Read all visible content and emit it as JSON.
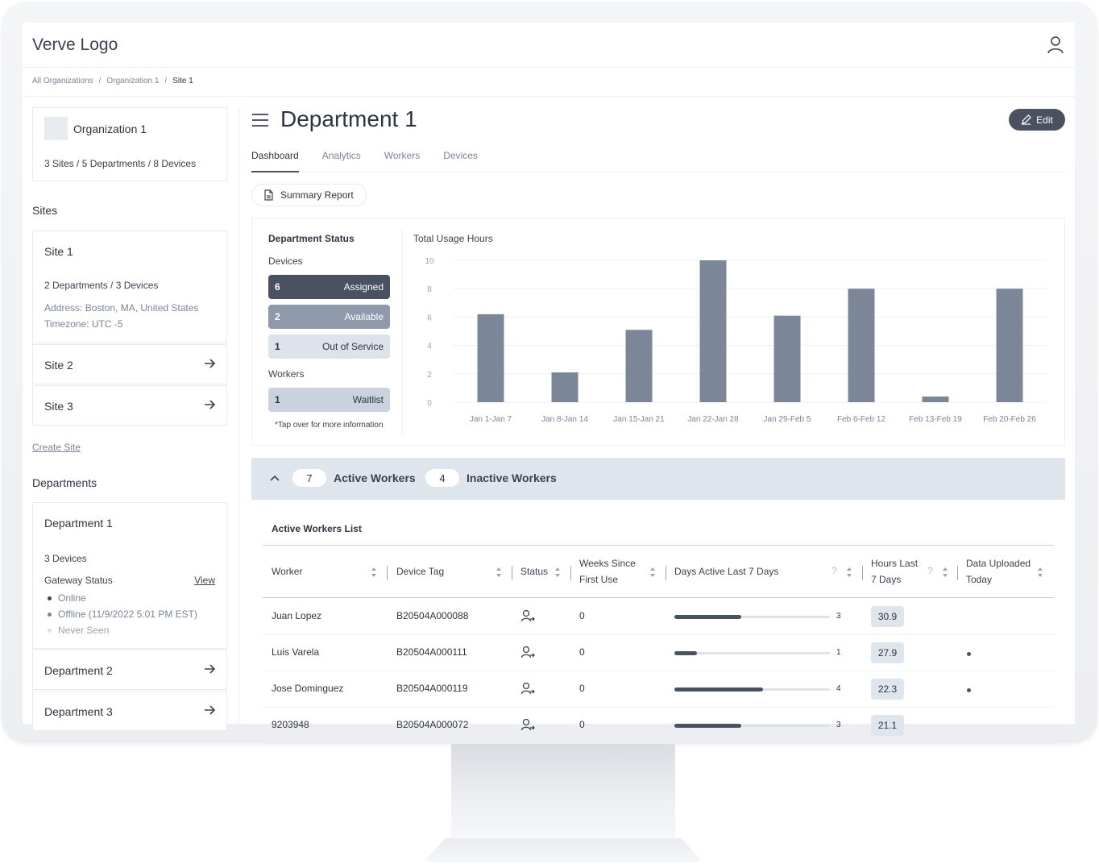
{
  "header": {
    "logo": "Verve Logo"
  },
  "breadcrumb": [
    "All Organizations",
    "Organization 1",
    "Site 1"
  ],
  "org": {
    "name": "Organization 1",
    "meta": "3 Sites / 5 Departments / 8 Devices"
  },
  "sites": {
    "title": "Sites",
    "site1": {
      "name": "Site 1",
      "meta": "2 Departments / 3 Devices",
      "address": "Address: Boston, MA, United States",
      "timezone": "Timezone: UTC -5"
    },
    "others": [
      "Site 2",
      "Site 3"
    ],
    "create": "Create Site"
  },
  "departments": {
    "title": "Departments",
    "dept1": {
      "name": "Department 1",
      "devices": "3 Devices",
      "gateway_label": "Gateway Status",
      "view": "View",
      "statuses": [
        "Online",
        "Offline (11/9/2022 5:01 PM EST)",
        "Never Seen"
      ]
    },
    "others": [
      "Department 2",
      "Department 3"
    ]
  },
  "page": {
    "title": "Department 1",
    "edit": "Edit"
  },
  "tabs": [
    "Dashboard",
    "Analytics",
    "Workers",
    "Devices"
  ],
  "summary": "Summary Report",
  "dept_status": {
    "title": "Department Status",
    "devices_label": "Devices",
    "devices": [
      {
        "count": "6",
        "label": "Assigned"
      },
      {
        "count": "2",
        "label": "Available"
      },
      {
        "count": "1",
        "label": "Out of Service"
      }
    ],
    "workers_label": "Workers",
    "workers": [
      {
        "count": "1",
        "label": "Waitlist"
      }
    ],
    "note": "*Tap over for more information"
  },
  "chart_title": "Total Usage Hours",
  "chart_data": {
    "type": "bar",
    "title": "Total Usage Hours",
    "categories": [
      "Jan 1-Jan 7",
      "Jan 8-Jan 14",
      "Jan 15-Jan 21",
      "Jan 22-Jan 28",
      "Jan 29-Feb 5",
      "Feb 6-Feb 12",
      "Feb 13-Feb 19",
      "Feb 20-Feb 26"
    ],
    "values": [
      6.2,
      2.1,
      5.1,
      10,
      6.1,
      8,
      0.4,
      8
    ],
    "yticks": [
      "0",
      "2",
      "4",
      "6",
      "8",
      "10"
    ],
    "ylim": [
      0,
      10
    ],
    "grid": true
  },
  "workers_bar": {
    "active_count": "7",
    "active_label": "Active Workers",
    "inactive_count": "4",
    "inactive_label": "Inactive Workers"
  },
  "table": {
    "title": "Active Workers List",
    "headers": {
      "worker": "Worker",
      "device": "Device Tag",
      "status": "Status",
      "weeks1": "Weeks Since",
      "weeks2": "First Use",
      "days": "Days Active Last 7 Days",
      "hours1": "Hours Last",
      "hours2": "7 Days",
      "upl1": "Data Uploaded",
      "upl2": "Today",
      "help": "?"
    },
    "rows": [
      {
        "worker": "Juan Lopez",
        "device": "B20504A000088",
        "weeks": "0",
        "days": "3",
        "days_value": 3,
        "hours": "30.9",
        "uploaded": false
      },
      {
        "worker": "Luis Varela",
        "device": "B20504A000111",
        "weeks": "0",
        "days": "1",
        "days_value": 1,
        "hours": "27.9",
        "uploaded": true
      },
      {
        "worker": "Jose Dominguez",
        "device": "B20504A000119",
        "weeks": "0",
        "days": "4",
        "days_value": 4,
        "hours": "22.3",
        "uploaded": true
      },
      {
        "worker": "9203948",
        "device": "B20504A000072",
        "weeks": "0",
        "days": "3",
        "days_value": 3,
        "hours": "21.1",
        "uploaded": false
      }
    ]
  }
}
